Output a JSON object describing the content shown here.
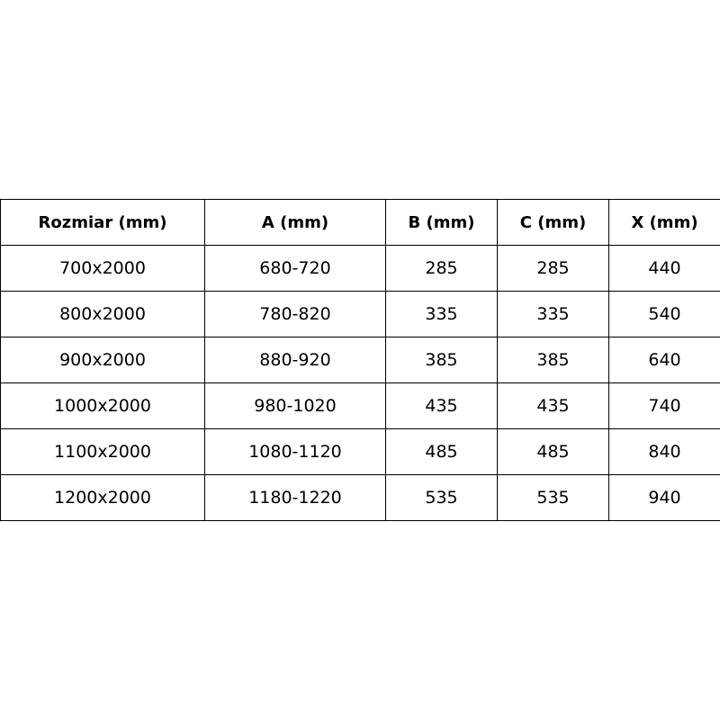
{
  "table": {
    "headers": [
      "Rozmiar (mm)",
      "A (mm)",
      "B (mm)",
      "C (mm)",
      "X (mm)"
    ],
    "rows": [
      [
        "700x2000",
        "680-720",
        "285",
        "285",
        "440"
      ],
      [
        "800x2000",
        "780-820",
        "335",
        "335",
        "540"
      ],
      [
        "900x2000",
        "880-920",
        "385",
        "385",
        "640"
      ],
      [
        "1000x2000",
        "980-1020",
        "435",
        "435",
        "740"
      ],
      [
        "1100x2000",
        "1080-1120",
        "485",
        "485",
        "840"
      ],
      [
        "1200x2000",
        "1180-1220",
        "535",
        "535",
        "940"
      ]
    ]
  }
}
